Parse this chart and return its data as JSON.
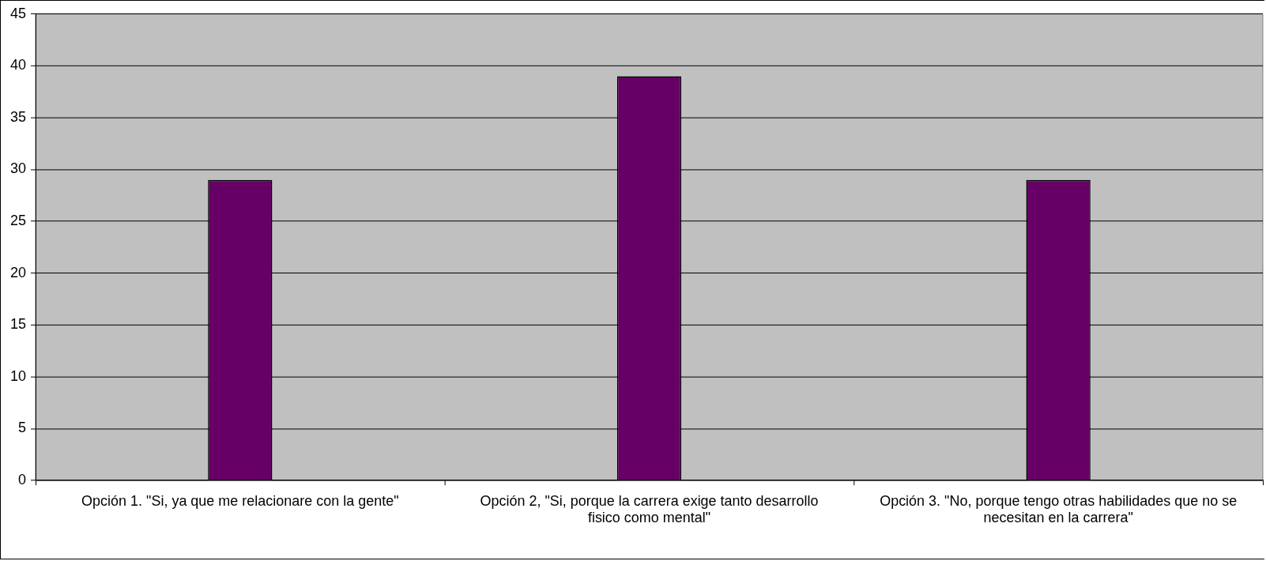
{
  "chart_data": {
    "type": "bar",
    "categories": [
      "Opción 1. \"Si, ya que me relacionare con la gente\"",
      "Opción 2, \"Si, porque la carrera exige tanto desarrollo fisico como mental\"",
      "Opción 3. \"No, porque tengo otras habilidades que no se necesitan en la carrera\""
    ],
    "values": [
      29,
      39,
      29
    ],
    "color": "#660066",
    "ylim": [
      0,
      45
    ],
    "yticks": [
      0,
      5,
      10,
      15,
      20,
      25,
      30,
      35,
      40,
      45
    ],
    "grid": "y",
    "legend": false
  }
}
